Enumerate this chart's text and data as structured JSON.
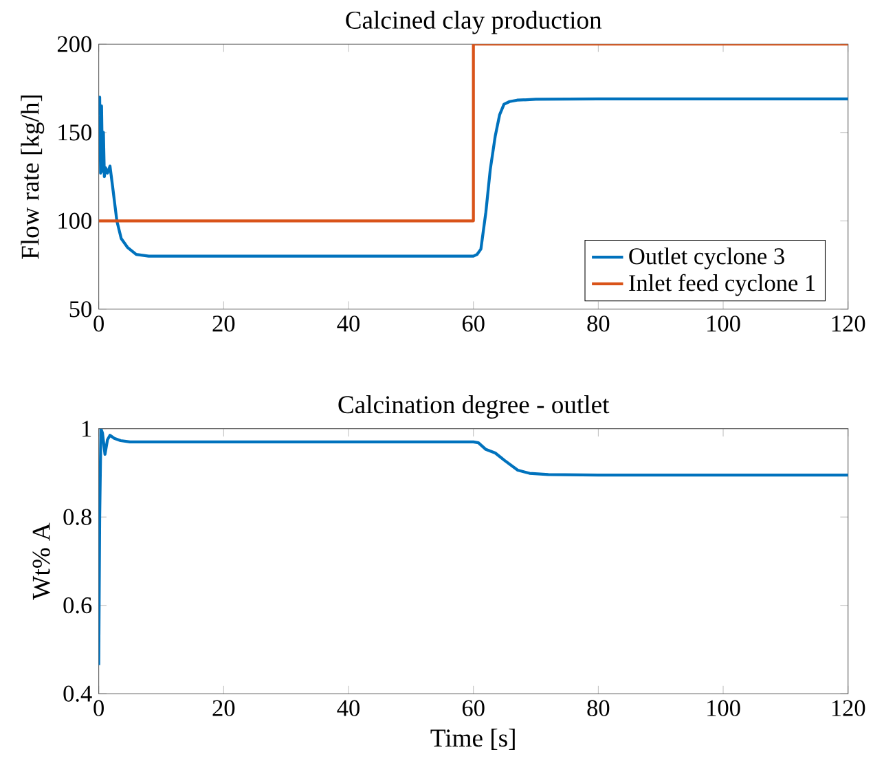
{
  "chart_data": [
    {
      "type": "line",
      "title": "Calcined clay production",
      "ylabel": "Flow rate [kg/h]",
      "xlim": [
        0,
        120
      ],
      "ylim": [
        50,
        200
      ],
      "xticks": [
        0,
        20,
        40,
        60,
        80,
        100,
        120
      ],
      "yticks": [
        50,
        100,
        150,
        200
      ],
      "legend": "bottom right",
      "grid": false,
      "series": [
        {
          "name": "Outlet cyclone 3",
          "color": "#0072bd",
          "x": [
            0,
            0.15,
            0.3,
            0.45,
            0.6,
            0.75,
            0.9,
            1.1,
            1.4,
            1.8,
            2.2,
            2.9,
            3.6,
            4.6,
            6,
            8,
            20,
            40,
            60,
            60.6,
            61.2,
            62,
            62.7,
            63.5,
            64.2,
            64.9,
            65.8,
            67,
            70,
            80,
            100,
            120
          ],
          "values": [
            160,
            170,
            127,
            165,
            128,
            150,
            125,
            130,
            127,
            131,
            120,
            100,
            90,
            85,
            81,
            80,
            80,
            80,
            80,
            81,
            84,
            105,
            129,
            148,
            160,
            166,
            167.5,
            168.3,
            168.8,
            169,
            169,
            169
          ]
        },
        {
          "name": "Inlet feed cyclone 1",
          "color": "#d95319",
          "type": "step",
          "x": [
            0,
            60,
            120
          ],
          "values": [
            100,
            200,
            200
          ]
        }
      ]
    },
    {
      "type": "line",
      "title": "Calcination degree - outlet",
      "xlabel": "Time [s]",
      "ylabel": "Wt% A",
      "xlim": [
        0,
        120
      ],
      "ylim": [
        0.4,
        1
      ],
      "xticks": [
        0,
        20,
        40,
        60,
        80,
        100,
        120
      ],
      "yticks": [
        0.4,
        0.6,
        0.8,
        1
      ],
      "grid": false,
      "series": [
        {
          "color": "#0072bd",
          "x": [
            0,
            0.15,
            0.35,
            0.6,
            1.0,
            1.4,
            1.8,
            2.5,
            3.5,
            5,
            20,
            40,
            60,
            60.8,
            62,
            63.5,
            65,
            67.1,
            69,
            72,
            80,
            100,
            120
          ],
          "values": [
            0.465,
            0.8,
            1.0,
            0.99,
            0.942,
            0.975,
            0.985,
            0.978,
            0.973,
            0.97,
            0.97,
            0.97,
            0.97,
            0.968,
            0.953,
            0.945,
            0.928,
            0.906,
            0.899,
            0.896,
            0.895,
            0.895,
            0.895
          ]
        }
      ]
    }
  ]
}
